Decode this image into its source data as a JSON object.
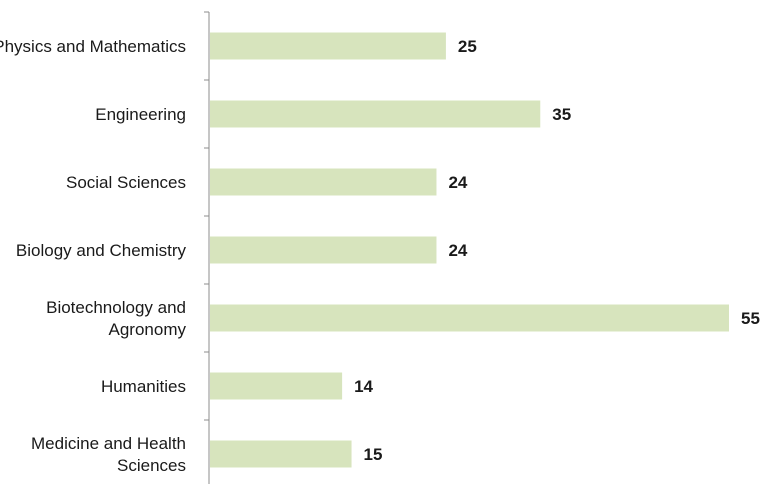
{
  "chart_data": {
    "type": "bar",
    "orientation": "horizontal",
    "categories": [
      "Physics and Mathematics",
      "Engineering",
      "Social Sciences",
      "Biology and Chemistry",
      "Biotechnology and Agronomy",
      "Humanities",
      "Medicine and Health Sciences"
    ],
    "category_label_lines": [
      [
        "Physics and Mathematics"
      ],
      [
        "Engineering"
      ],
      [
        "Social Sciences"
      ],
      [
        "Biology and Chemistry"
      ],
      [
        "Biotechnology and",
        "Agronomy"
      ],
      [
        "Humanities"
      ],
      [
        "Medicine and Health",
        "Sciences"
      ]
    ],
    "values": [
      25,
      35,
      24,
      24,
      55,
      14,
      15
    ],
    "data_labels": [
      "25",
      "35",
      "24",
      "24",
      "55",
      "14",
      "15"
    ],
    "xlim": [
      0,
      55
    ],
    "grid": false,
    "bar_color": "#d7e4bd",
    "axis_color": "#8c8c8c"
  }
}
